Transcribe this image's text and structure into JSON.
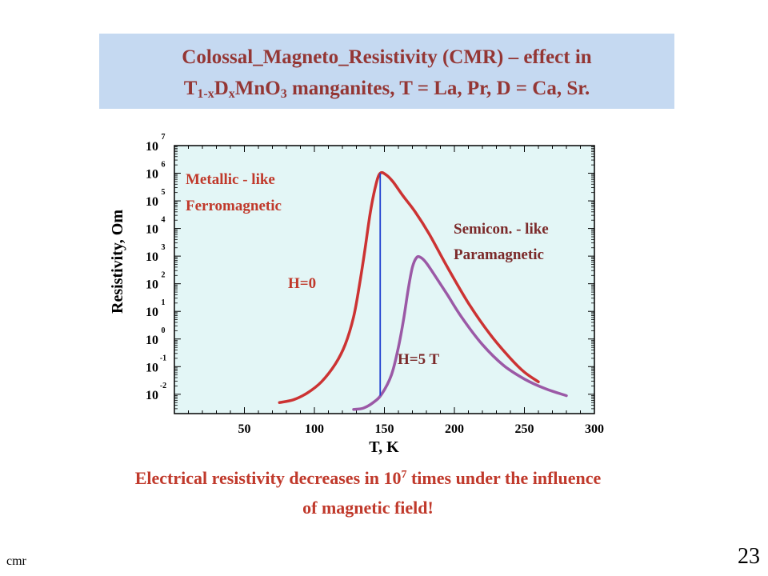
{
  "title": {
    "line1": "Colossal_Magneto_Resistivity (CMR) – effect in",
    "l2_T": "T",
    "l2_sub1": "1-x",
    "l2_D": "D",
    "l2_sub2": "x",
    "l2_Mn": "MnO",
    "l2_sub3": "3",
    "l2_rest": " manganites, T = La, Pr,  D = Ca, Sr."
  },
  "caption": {
    "part1": "Electrical resistivity decreases in 10",
    "sup": "7",
    "part2": " times under the influence",
    "line2": "of magnetic field!"
  },
  "footer": {
    "left": "cmr",
    "page": "23"
  },
  "colors": {
    "title_bg": "#c5d9f1",
    "title_text": "#943634",
    "plot_bg": "#e3f6f6",
    "curve_h0": "#cc3333",
    "curve_h5": "#9b59a6",
    "marker_line": "#1f3fd0",
    "annotation": "#c0392b",
    "annotation_dark": "#7b2a2a"
  },
  "chart_data": {
    "type": "line",
    "xlabel": "T, K",
    "ylabel": "Resistivity, Om",
    "xlim": [
      0,
      300
    ],
    "ylim_exponent": [
      -2.7,
      7
    ],
    "log_y": true,
    "xticks": [
      "50",
      "100",
      "150",
      "200",
      "250",
      "300"
    ],
    "xtick_values": [
      50,
      100,
      150,
      200,
      250,
      300
    ],
    "yticks": [
      {
        "base": "10",
        "exp": "-2",
        "value": -2
      },
      {
        "base": "10",
        "exp": "-1",
        "value": -1
      },
      {
        "base": "10",
        "exp": "0",
        "value": 0
      },
      {
        "base": "10",
        "exp": "1",
        "value": 1
      },
      {
        "base": "10",
        "exp": "2",
        "value": 2
      },
      {
        "base": "10",
        "exp": "3",
        "value": 3
      },
      {
        "base": "10",
        "exp": "4",
        "value": 4
      },
      {
        "base": "10",
        "exp": "5",
        "value": 5
      },
      {
        "base": "10",
        "exp": "6",
        "value": 6
      },
      {
        "base": "10",
        "exp": "7",
        "value": 7
      }
    ],
    "annotations": {
      "metallic_1": "Metallic - like",
      "metallic_2": "Ferromagnetic",
      "semicon_1": "Semicon. - like",
      "semicon_2": "Paramagnetic",
      "h0": "H=0",
      "h5": "H=5 T"
    },
    "series": [
      {
        "name": "H=0",
        "x": [
          75,
          85,
          95,
          105,
          115,
          122,
          128,
          132,
          136,
          140,
          144,
          147,
          151,
          156,
          163,
          172,
          182,
          195,
          210,
          225,
          240,
          250,
          260
        ],
        "log_y": [
          -2.3,
          -2.2,
          -1.95,
          -1.55,
          -0.9,
          -0.2,
          0.8,
          1.9,
          3.2,
          4.6,
          5.6,
          6.0,
          5.95,
          5.7,
          5.2,
          4.6,
          3.8,
          2.6,
          1.3,
          0.2,
          -0.7,
          -1.2,
          -1.55
        ]
      },
      {
        "name": "H=5 T",
        "x": [
          128,
          135,
          142,
          148,
          155,
          160,
          164,
          167,
          170,
          173,
          176,
          180,
          186,
          195,
          205,
          220,
          235,
          250,
          265,
          280
        ],
        "log_y": [
          -2.55,
          -2.5,
          -2.3,
          -2.0,
          -1.3,
          -0.3,
          0.8,
          1.8,
          2.6,
          2.95,
          2.95,
          2.75,
          2.3,
          1.6,
          0.8,
          -0.2,
          -0.95,
          -1.45,
          -1.8,
          -2.05
        ]
      }
    ],
    "marker_x": 147
  }
}
